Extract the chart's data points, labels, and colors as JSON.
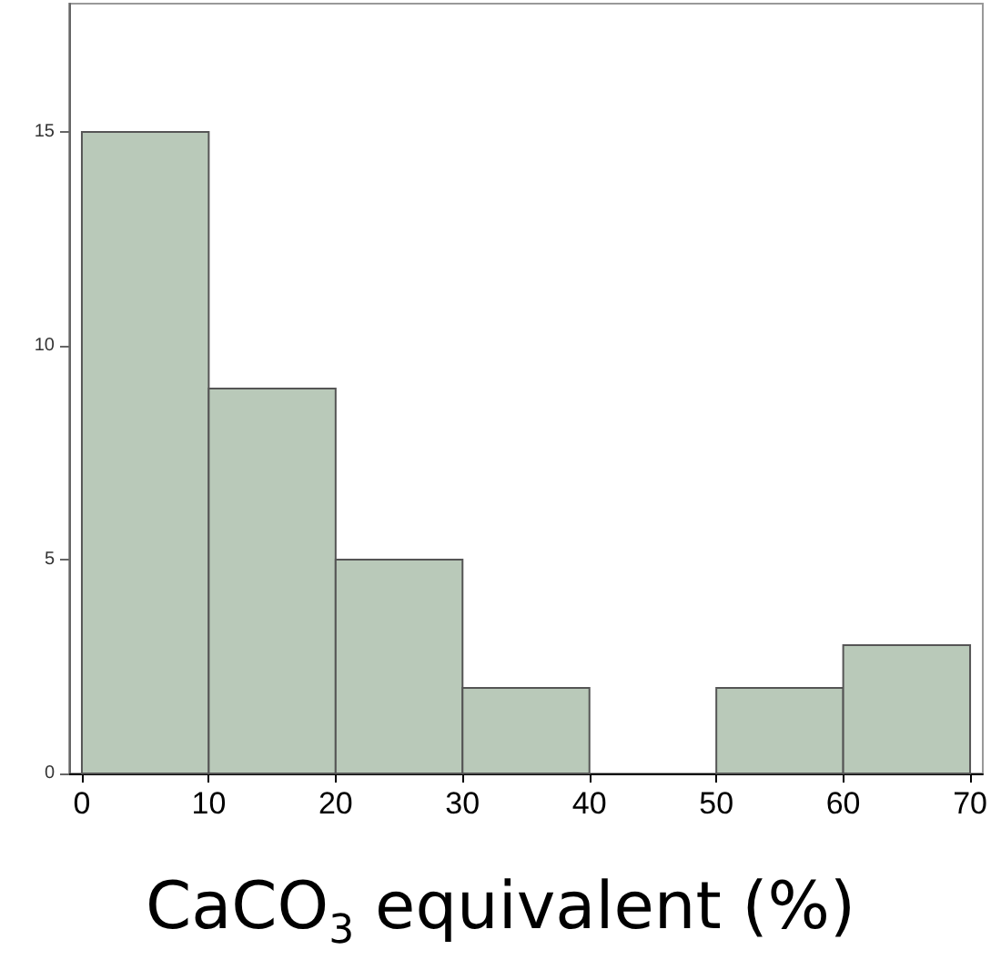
{
  "chart_data": {
    "type": "histogram",
    "xlabel": "CaCO$_{3}$ equivalent (%)",
    "bins": [
      0,
      10,
      20,
      30,
      40,
      50,
      60,
      70
    ],
    "values": [
      15,
      9,
      5,
      2,
      0,
      2,
      3
    ],
    "color": "#b9c9b9",
    "xlim": [
      -1,
      71
    ],
    "xticks": [
      0,
      10,
      20,
      30,
      40,
      50,
      60,
      70
    ],
    "ylim": [
      0,
      18
    ],
    "yticks": [
      0,
      5,
      10,
      15
    ],
    "grid": false
  }
}
